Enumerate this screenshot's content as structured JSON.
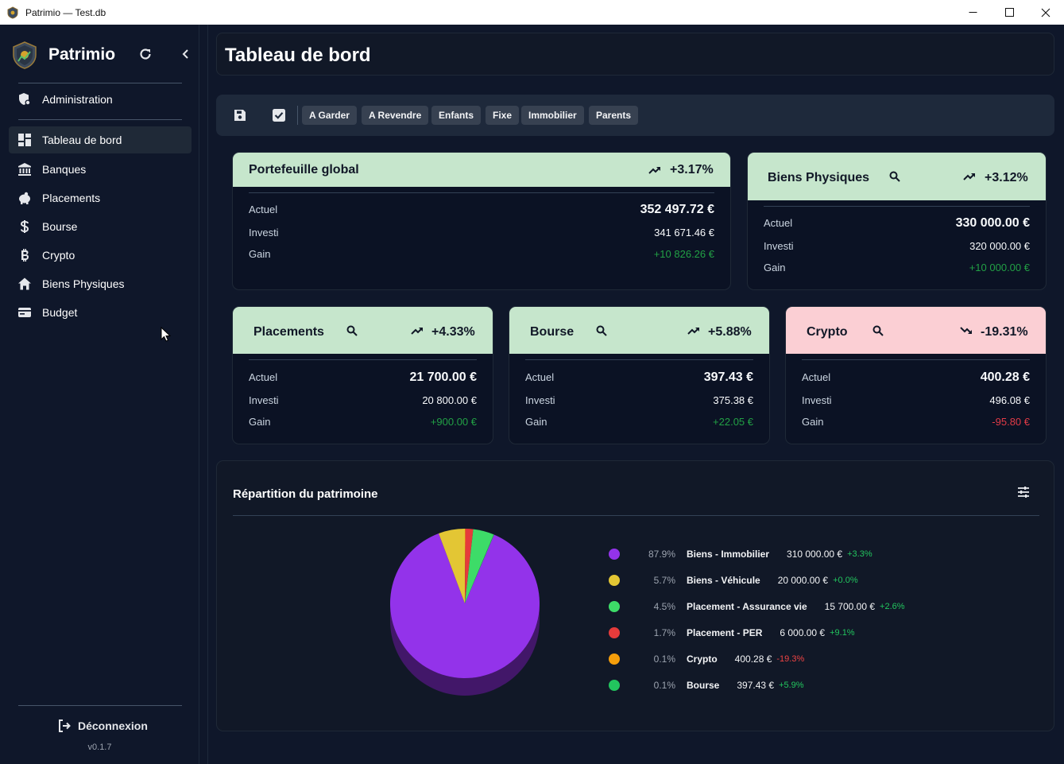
{
  "window": {
    "title": "Patrimio — Test.db"
  },
  "sidebar": {
    "brand": "Patrimio",
    "admin_label": "Administration",
    "items": [
      {
        "label": "Tableau de bord",
        "icon": "dashboard-icon",
        "active": true
      },
      {
        "label": "Banques",
        "icon": "bank-icon"
      },
      {
        "label": "Placements",
        "icon": "piggy-bank-icon"
      },
      {
        "label": "Bourse",
        "icon": "dollar-icon"
      },
      {
        "label": "Crypto",
        "icon": "bitcoin-icon"
      },
      {
        "label": "Biens Physiques",
        "icon": "home-icon"
      },
      {
        "label": "Budget",
        "icon": "wallet-icon"
      }
    ],
    "logout_label": "Déconnexion",
    "version": "v0.1.7"
  },
  "header": {
    "title": "Tableau de bord"
  },
  "toolbar": {
    "tags": [
      "A Garder",
      "A Revendre",
      "Enfants",
      "Fixe",
      "Immobilier",
      "Parents"
    ]
  },
  "labels": {
    "actuel": "Actuel",
    "investi": "Investi",
    "gain": "Gain"
  },
  "cards": {
    "global": {
      "title": "Portefeuille global",
      "pct": "+3.17%",
      "actuel": "352 497.72 €",
      "investi": "341 671.46 €",
      "gain": "+10 826.26 €",
      "trend": "up"
    },
    "biens": {
      "title": "Biens Physiques",
      "pct": "+3.12%",
      "actuel": "330 000.00 €",
      "investi": "320 000.00 €",
      "gain": "+10 000.00 €",
      "trend": "up"
    },
    "placements": {
      "title": "Placements",
      "pct": "+4.33%",
      "actuel": "21 700.00 €",
      "investi": "20 800.00 €",
      "gain": "+900.00 €",
      "trend": "up"
    },
    "bourse": {
      "title": "Bourse",
      "pct": "+5.88%",
      "actuel": "397.43 €",
      "investi": "375.38 €",
      "gain": "+22.05 €",
      "trend": "up"
    },
    "crypto": {
      "title": "Crypto",
      "pct": "-19.31%",
      "actuel": "400.28 €",
      "investi": "496.08 €",
      "gain": "-95.80 €",
      "trend": "down"
    }
  },
  "repartition": {
    "title": "Répartition du patrimoine",
    "items": [
      {
        "pct": "87.9%",
        "name": "Biens - Immobilier",
        "value": "310 000.00 €",
        "change": "+3.3%",
        "color": "#9333ea"
      },
      {
        "pct": "5.7%",
        "name": "Biens - Véhicule",
        "value": "20 000.00 €",
        "change": "+0.0%",
        "color": "#e3c634"
      },
      {
        "pct": "4.5%",
        "name": "Placement - Assurance vie",
        "value": "15 700.00 €",
        "change": "+2.6%",
        "color": "#3ddc68"
      },
      {
        "pct": "1.7%",
        "name": "Placement - PER",
        "value": "6 000.00 €",
        "change": "+9.1%",
        "color": "#e53b3b"
      },
      {
        "pct": "0.1%",
        "name": "Crypto",
        "value": "400.28 €",
        "change": "-19.3%",
        "color": "#f59e0b"
      },
      {
        "pct": "0.1%",
        "name": "Bourse",
        "value": "397.43 €",
        "change": "+5.9%",
        "color": "#22c55e"
      }
    ]
  },
  "colors": {
    "accent_positive": "#22a045",
    "accent_negative": "#e23b47",
    "card_header_positive": "#c6e6cc",
    "card_header_negative": "#fbcfd4",
    "background": "#0f172a"
  }
}
